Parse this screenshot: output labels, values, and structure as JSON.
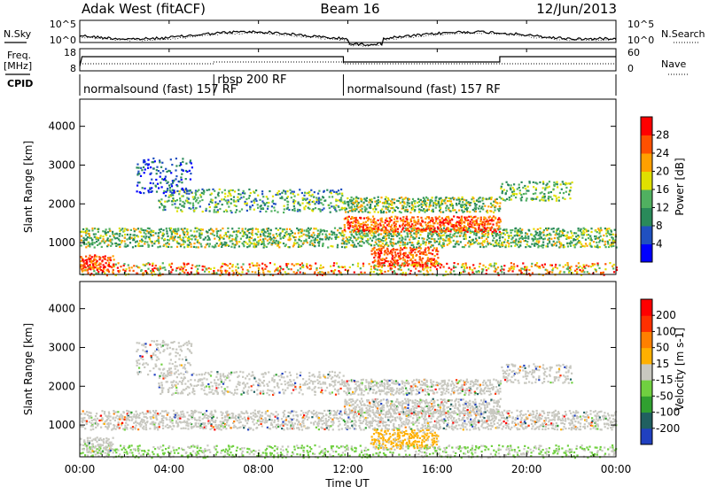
{
  "header": {
    "station": "Adak West (fitACF)",
    "beam": "Beam 16",
    "date": "12/Jun/2013"
  },
  "noise_panel": {
    "left_label": "N.Sky",
    "right_label": "N.Search",
    "left_ticks": [
      "10^5",
      "10^0"
    ],
    "right_ticks": [
      "10^5",
      "10^0"
    ]
  },
  "freq_panel": {
    "left_label_1": "Freq.",
    "left_label_2": "[MHz]",
    "right_label": "Nave",
    "left_ticks": [
      "18",
      "8"
    ],
    "right_ticks": [
      "60",
      "0"
    ]
  },
  "cpid": {
    "label": "CPID",
    "segments": [
      {
        "text": "normalsound (fast) 157 RF",
        "start_hour": 0.0,
        "end_hour": 6.0
      },
      {
        "text": "rbsp 200 RF",
        "start_hour": 6.0,
        "end_hour": 11.8
      },
      {
        "text": "normalsound (fast) 157 RF",
        "start_hour": 11.8,
        "end_hour": 24.0
      }
    ]
  },
  "x_axis": {
    "label": "Time UT",
    "ticks": [
      "00:00",
      "04:00",
      "08:00",
      "12:00",
      "16:00",
      "20:00",
      "00:00"
    ]
  },
  "chart_data": [
    {
      "type": "heatmap",
      "name": "power",
      "xlabel": "Time UT",
      "ylabel": "Slant Range [km]",
      "xlim_hours": [
        0,
        24
      ],
      "ylim_km": [
        180,
        4700
      ],
      "y_ticks": [
        "1000",
        "2000",
        "3000",
        "4000"
      ],
      "colorbar": {
        "label": "Power [dB]",
        "ticks": [
          "28",
          "24",
          "20",
          "16",
          "12",
          "8",
          "4"
        ],
        "colors": [
          "#0000ff",
          "#2050c0",
          "#2a8a5a",
          "#50b060",
          "#e0e000",
          "#ffa000",
          "#ff5000",
          "#ff0000"
        ]
      }
    },
    {
      "type": "heatmap",
      "name": "velocity",
      "xlabel": "Time UT",
      "ylabel": "Slant Range [km]",
      "xlim_hours": [
        0,
        24
      ],
      "ylim_km": [
        180,
        4700
      ],
      "y_ticks": [
        "1000",
        "2000",
        "3000",
        "4000"
      ],
      "colorbar": {
        "label": "Velocity [m s-1]",
        "ticks": [
          "200",
          "100",
          "50",
          "15",
          "-15",
          "-50",
          "-100",
          "-200"
        ],
        "colors": [
          "#2040c0",
          "#206060",
          "#30a030",
          "#70d040",
          "#c8c8c0",
          "#ffb000",
          "#ff8000",
          "#ff3000",
          "#ff0000"
        ]
      }
    }
  ]
}
